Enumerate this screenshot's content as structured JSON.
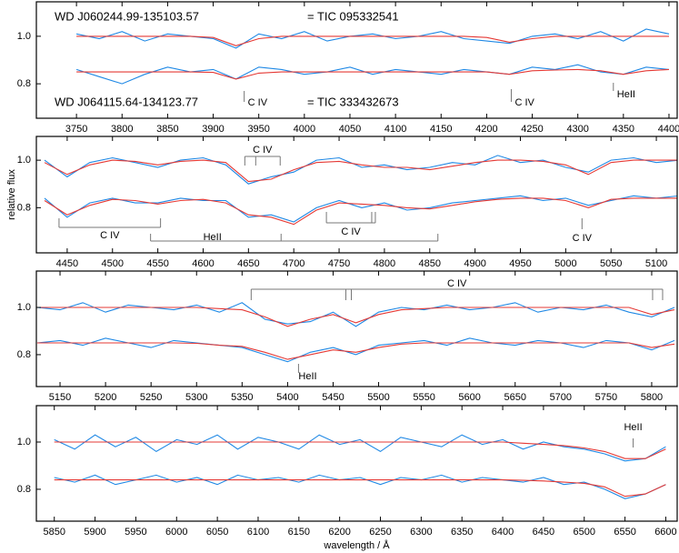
{
  "chart_data": [
    {
      "type": "line",
      "annotations": [
        "WD J060244.99-135103.57",
        "= TIC 095332541",
        "WD J064115.64-134123.77",
        "= TIC 333432673"
      ],
      "x": [
        3750,
        3775,
        3800,
        3825,
        3850,
        3875,
        3900,
        3925,
        3950,
        3975,
        4000,
        4025,
        4050,
        4075,
        4100,
        4125,
        4150,
        4175,
        4200,
        4225,
        4250,
        4275,
        4300,
        4325,
        4350,
        4375,
        4400
      ],
      "series": [
        {
          "color": "#1e88e5",
          "values": [
            1.01,
            0.99,
            1.02,
            0.98,
            1.01,
            1.0,
            0.99,
            0.95,
            1.01,
            0.99,
            1.02,
            0.98,
            1.0,
            1.01,
            0.99,
            1.0,
            1.02,
            0.99,
            0.98,
            0.97,
            1.0,
            1.01,
            0.99,
            1.02,
            0.98,
            1.03,
            1.01
          ]
        },
        {
          "color": "#e53935",
          "values": [
            1.0,
            1.0,
            1.0,
            1.0,
            1.0,
            1.0,
            0.995,
            0.96,
            0.99,
            1.0,
            1.0,
            1.0,
            1.0,
            1.0,
            1.0,
            1.0,
            1.0,
            1.0,
            0.995,
            0.975,
            0.99,
            1.0,
            1.0,
            1.0,
            1.0,
            1.0,
            1.0
          ]
        },
        {
          "color": "#1e88e5",
          "values": [
            0.86,
            0.83,
            0.8,
            0.84,
            0.87,
            0.85,
            0.86,
            0.82,
            0.87,
            0.86,
            0.84,
            0.85,
            0.87,
            0.84,
            0.86,
            0.85,
            0.84,
            0.86,
            0.85,
            0.84,
            0.87,
            0.86,
            0.88,
            0.85,
            0.84,
            0.87,
            0.86
          ]
        },
        {
          "color": "#e53935",
          "values": [
            0.85,
            0.85,
            0.85,
            0.85,
            0.85,
            0.85,
            0.848,
            0.82,
            0.845,
            0.85,
            0.85,
            0.85,
            0.85,
            0.85,
            0.85,
            0.85,
            0.85,
            0.85,
            0.85,
            0.84,
            0.855,
            0.858,
            0.86,
            0.855,
            0.84,
            0.855,
            0.86
          ]
        }
      ],
      "line_ids": [
        {
          "label": "C IV",
          "wavelengths": [
            3934
          ]
        },
        {
          "label": "C IV",
          "wavelengths": [
            4227
          ]
        },
        {
          "label": "HeII",
          "wavelengths": [
            4339
          ]
        }
      ],
      "xlim": [
        3706,
        4409
      ],
      "xticks": [
        3750,
        3800,
        3850,
        3900,
        3950,
        4000,
        4050,
        4100,
        4150,
        4200,
        4250,
        4300,
        4350,
        4400
      ],
      "ylim": [
        0.655,
        1.145
      ],
      "yticks": [
        0.8,
        {
          "value": 1,
          "label": "1.0"
        }
      ]
    },
    {
      "type": "line",
      "ylabel": "relative flux",
      "x": [
        4425,
        4450,
        4475,
        4500,
        4525,
        4550,
        4575,
        4600,
        4625,
        4650,
        4675,
        4700,
        4725,
        4750,
        4775,
        4800,
        4825,
        4850,
        4875,
        4900,
        4925,
        4950,
        4975,
        5000,
        5025,
        5050,
        5075,
        5100,
        5125
      ],
      "series": [
        {
          "color": "#1e88e5",
          "values": [
            1.0,
            0.93,
            0.99,
            1.01,
            0.99,
            0.97,
            1.0,
            1.01,
            0.98,
            0.9,
            0.93,
            0.95,
            1.0,
            1.01,
            0.97,
            0.98,
            0.96,
            0.97,
            0.99,
            0.98,
            1.02,
            0.99,
            1.0,
            0.97,
            0.95,
            1.0,
            1.01,
            0.99,
            1.0
          ]
        },
        {
          "color": "#e53935",
          "values": [
            0.99,
            0.94,
            0.98,
            1.0,
            0.995,
            0.98,
            0.995,
            1.0,
            0.99,
            0.91,
            0.92,
            0.96,
            0.99,
            0.995,
            0.98,
            0.97,
            0.97,
            0.96,
            0.975,
            0.99,
            1.0,
            1.0,
            0.995,
            0.98,
            0.94,
            0.99,
            1.0,
            1.0,
            1.0
          ]
        },
        {
          "color": "#1e88e5",
          "values": [
            0.84,
            0.76,
            0.82,
            0.84,
            0.82,
            0.82,
            0.84,
            0.83,
            0.83,
            0.76,
            0.77,
            0.74,
            0.8,
            0.83,
            0.8,
            0.82,
            0.79,
            0.8,
            0.82,
            0.83,
            0.84,
            0.85,
            0.83,
            0.84,
            0.81,
            0.83,
            0.85,
            0.84,
            0.85
          ]
        },
        {
          "color": "#e53935",
          "values": [
            0.83,
            0.77,
            0.81,
            0.835,
            0.83,
            0.815,
            0.83,
            0.835,
            0.82,
            0.77,
            0.76,
            0.73,
            0.79,
            0.82,
            0.815,
            0.81,
            0.8,
            0.795,
            0.81,
            0.825,
            0.835,
            0.84,
            0.84,
            0.83,
            0.8,
            0.835,
            0.84,
            0.84,
            0.84
          ]
        }
      ],
      "line_ids": [
        {
          "label": "C IV",
          "wavelengths": [
            4646,
            4658,
            4685
          ]
        },
        {
          "label": "C IV",
          "wavelengths": [
            4441,
            4553
          ]
        },
        {
          "label": "HeII",
          "wavelengths": [
            4542,
            4686,
            4859
          ]
        },
        {
          "label": "C IV",
          "wavelengths": [
            4736,
            4786,
            4790
          ]
        },
        {
          "label": "C IV",
          "wavelengths": [
            5018
          ]
        }
      ],
      "xlim": [
        4416,
        5123
      ],
      "xticks": [
        4450,
        4500,
        4550,
        4600,
        4650,
        4700,
        4750,
        4800,
        4850,
        4900,
        4950,
        5000,
        5050,
        5100
      ],
      "ylim": [
        0.61,
        1.1
      ],
      "yticks": [
        0.8,
        {
          "value": 1,
          "label": "1.0"
        }
      ]
    },
    {
      "type": "line",
      "x": [
        5125,
        5150,
        5175,
        5200,
        5225,
        5250,
        5275,
        5300,
        5325,
        5350,
        5375,
        5400,
        5425,
        5450,
        5475,
        5500,
        5525,
        5550,
        5575,
        5600,
        5625,
        5650,
        5675,
        5700,
        5725,
        5750,
        5775,
        5800,
        5825
      ],
      "series": [
        {
          "color": "#1e88e5",
          "values": [
            1.0,
            0.99,
            1.02,
            0.98,
            1.01,
            1.0,
            0.99,
            1.01,
            0.98,
            1.02,
            0.95,
            0.93,
            0.94,
            0.98,
            0.92,
            0.98,
            1.0,
            0.99,
            1.01,
            0.99,
            1.0,
            1.02,
            0.98,
            1.0,
            0.99,
            1.01,
            0.98,
            0.96,
            1.0
          ]
        },
        {
          "color": "#e53935",
          "values": [
            1,
            1,
            1,
            1,
            1,
            1,
            1,
            1,
            0.995,
            0.99,
            0.96,
            0.92,
            0.95,
            0.97,
            0.935,
            0.97,
            0.99,
            0.995,
            1,
            1,
            1,
            1,
            1,
            1,
            1,
            1,
            1,
            0.97,
            0.99
          ]
        },
        {
          "color": "#1e88e5",
          "values": [
            0.85,
            0.86,
            0.84,
            0.87,
            0.85,
            0.83,
            0.86,
            0.85,
            0.84,
            0.83,
            0.8,
            0.77,
            0.81,
            0.83,
            0.8,
            0.84,
            0.85,
            0.86,
            0.84,
            0.87,
            0.85,
            0.84,
            0.86,
            0.85,
            0.83,
            0.86,
            0.85,
            0.82,
            0.86
          ]
        },
        {
          "color": "#e53935",
          "values": [
            0.85,
            0.85,
            0.85,
            0.85,
            0.85,
            0.85,
            0.85,
            0.848,
            0.84,
            0.835,
            0.81,
            0.78,
            0.8,
            0.82,
            0.81,
            0.83,
            0.845,
            0.85,
            0.85,
            0.85,
            0.85,
            0.85,
            0.85,
            0.85,
            0.85,
            0.85,
            0.85,
            0.83,
            0.845
          ]
        }
      ],
      "line_ids": [
        {
          "label": "C IV",
          "wavelengths": [
            5360,
            5464,
            5470,
            5801,
            5812
          ]
        },
        {
          "label": "HeII",
          "wavelengths": [
            5412
          ]
        }
      ],
      "xlim": [
        5124,
        5828
      ],
      "xticks": [
        5150,
        5200,
        5250,
        5300,
        5350,
        5400,
        5450,
        5500,
        5550,
        5600,
        5650,
        5700,
        5750,
        5800
      ],
      "ylim": [
        0.665,
        1.154
      ],
      "yticks": [
        0.8,
        {
          "value": 1,
          "label": "1.0"
        }
      ]
    },
    {
      "type": "line",
      "xlabel": "wavelength / Å",
      "x": [
        5850,
        5875,
        5900,
        5925,
        5950,
        5975,
        6000,
        6025,
        6050,
        6075,
        6100,
        6125,
        6150,
        6175,
        6200,
        6225,
        6250,
        6275,
        6300,
        6325,
        6350,
        6375,
        6400,
        6425,
        6450,
        6475,
        6500,
        6525,
        6550,
        6575,
        6600
      ],
      "series": [
        {
          "color": "#1e88e5",
          "values": [
            1.01,
            0.97,
            1.03,
            0.98,
            1.02,
            0.96,
            1.01,
            0.99,
            1.03,
            0.97,
            1.02,
            1.0,
            0.97,
            1.03,
            0.99,
            1.01,
            0.96,
            1.02,
            1.0,
            0.98,
            1.03,
            0.99,
            1.01,
            0.97,
            1.0,
            0.98,
            0.97,
            0.95,
            0.92,
            0.93,
            0.98
          ]
        },
        {
          "color": "#e53935",
          "values": [
            1,
            1,
            1,
            1,
            1,
            1,
            1,
            1,
            1,
            1,
            1,
            1,
            1,
            1,
            1,
            1,
            1,
            1,
            1,
            1,
            1,
            1,
            1,
            0.995,
            0.99,
            0.985,
            0.975,
            0.96,
            0.93,
            0.93,
            0.97
          ]
        },
        {
          "color": "#1e88e5",
          "values": [
            0.85,
            0.83,
            0.86,
            0.82,
            0.84,
            0.86,
            0.83,
            0.85,
            0.82,
            0.86,
            0.84,
            0.85,
            0.83,
            0.86,
            0.84,
            0.85,
            0.82,
            0.85,
            0.84,
            0.86,
            0.83,
            0.85,
            0.84,
            0.83,
            0.85,
            0.82,
            0.83,
            0.8,
            0.76,
            0.78,
            0.82
          ]
        },
        {
          "color": "#e53935",
          "values": [
            0.84,
            0.84,
            0.84,
            0.84,
            0.84,
            0.84,
            0.84,
            0.84,
            0.84,
            0.84,
            0.84,
            0.84,
            0.84,
            0.84,
            0.84,
            0.84,
            0.84,
            0.84,
            0.84,
            0.84,
            0.84,
            0.84,
            0.84,
            0.838,
            0.835,
            0.83,
            0.825,
            0.81,
            0.77,
            0.78,
            0.82
          ]
        }
      ],
      "line_ids": [
        {
          "label": "HeII",
          "wavelengths": [
            6560
          ]
        }
      ],
      "xlim": [
        5828,
        6614
      ],
      "xticks": [
        5850,
        5900,
        5950,
        6000,
        6050,
        6100,
        6150,
        6200,
        6250,
        6300,
        6350,
        6400,
        6450,
        6500,
        6550,
        6600
      ],
      "ylim": [
        0.665,
        1.154
      ],
      "yticks": [
        0.8,
        {
          "value": 1,
          "label": "1.0"
        }
      ]
    }
  ]
}
